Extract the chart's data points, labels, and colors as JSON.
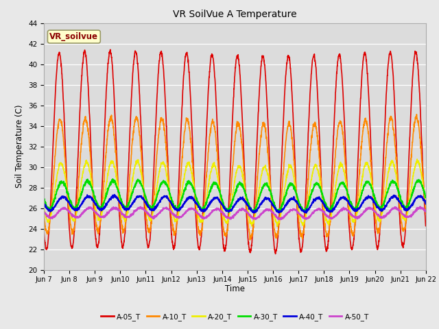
{
  "title": "VR SoilVue A Temperature",
  "ylabel": "Soil Temperature (C)",
  "xlabel": "Time",
  "annotation": "VR_soilvue",
  "ylim": [
    20,
    44
  ],
  "yticks": [
    20,
    22,
    24,
    26,
    28,
    30,
    32,
    34,
    36,
    38,
    40,
    42,
    44
  ],
  "x_labels": [
    "Jun 7",
    "Jun 8",
    "Jun 9",
    "Jun10",
    "Jun11",
    "Jun12",
    "Jun13",
    "Jun14",
    "Jun15",
    "Jun16",
    "Jun17",
    "Jun18",
    "Jun19",
    "Jun20",
    "Jun21",
    "Jun 22"
  ],
  "fig_bg_color": "#e8e8e8",
  "plot_bg_color": "#dcdcdc",
  "series": {
    "A-05_T": {
      "color": "#dd0000",
      "lw": 1.2
    },
    "A-10_T": {
      "color": "#ff8800",
      "lw": 1.2
    },
    "A-20_T": {
      "color": "#eeee00",
      "lw": 1.2
    },
    "A-30_T": {
      "color": "#00dd00",
      "lw": 1.5
    },
    "A-40_T": {
      "color": "#0000dd",
      "lw": 1.5
    },
    "A-50_T": {
      "color": "#cc44cc",
      "lw": 1.5
    }
  },
  "n_days": 15,
  "pts_per_day": 144
}
